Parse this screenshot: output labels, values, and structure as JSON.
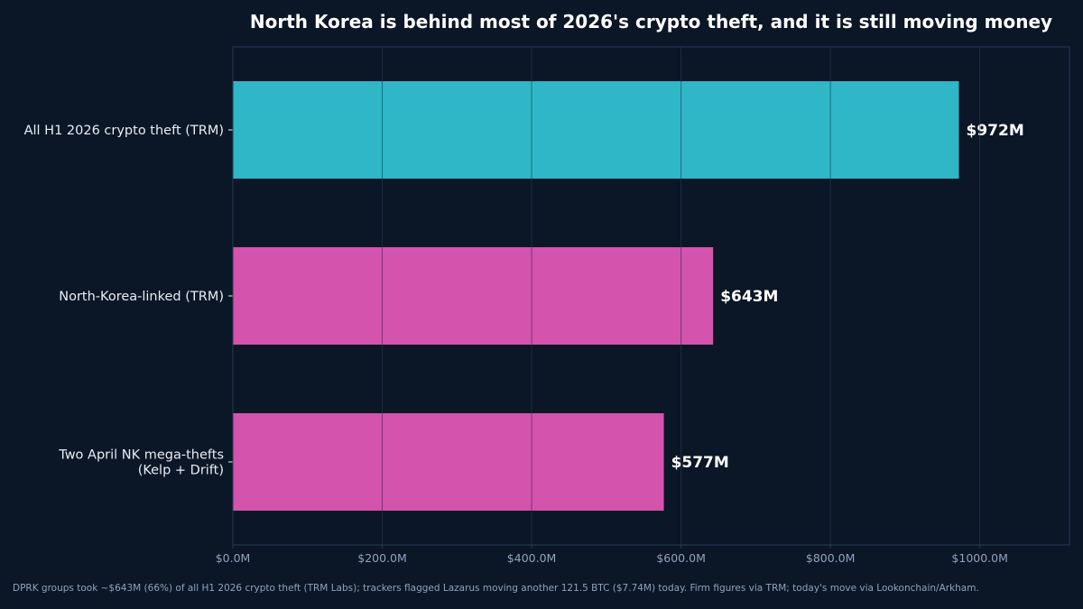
{
  "colors": {
    "background": "#0b1626",
    "frame": "#24395a",
    "grid": "#1c2c44",
    "title": "#ffffff",
    "category_label": "#e8edf5",
    "tick_label": "#8ea3bf",
    "value_label": "#ffffff",
    "footnote": "#8ea3bf"
  },
  "chart_data": {
    "type": "bar",
    "orientation": "horizontal",
    "title": "North Korea is behind most of 2026's crypto theft, and it is still moving money",
    "xlabel": "",
    "ylabel": "",
    "xlim": [
      0,
      1120
    ],
    "grid": true,
    "legend": "none",
    "categories": [
      [
        "All H1 2026 crypto theft (TRM)"
      ],
      [
        "North-Korea-linked (TRM)"
      ],
      [
        "Two April NK mega-thefts",
        "(Kelp + Drift)"
      ]
    ],
    "values": [
      972,
      643,
      577
    ],
    "value_labels": [
      "$972M",
      "$643M",
      "$577M"
    ],
    "bar_colors": [
      "#2fb6c7",
      "#d453ad",
      "#d453ad"
    ],
    "x_ticks": [
      0,
      200,
      400,
      600,
      800,
      1000
    ],
    "x_tick_labels": [
      "$0.0M",
      "$200.0M",
      "$400.0M",
      "$600.0M",
      "$800.0M",
      "$1000.0M"
    ]
  },
  "footnote": "DPRK groups took ~$643M (66%) of all H1 2026 crypto theft (TRM Labs); trackers flagged Lazarus moving another 121.5 BTC ($7.74M) today. Firm figures via TRM; today's move via Lookonchain/Arkham."
}
